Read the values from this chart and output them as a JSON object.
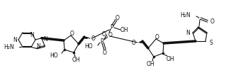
{
  "bg_color": "#ffffff",
  "line_color": "#111111",
  "lw": 0.8,
  "fs": 5.5,
  "figsize": [
    3.5,
    1.1
  ],
  "dpi": 100,
  "xlim": [
    0,
    350
  ],
  "ylim": [
    0,
    110
  ]
}
